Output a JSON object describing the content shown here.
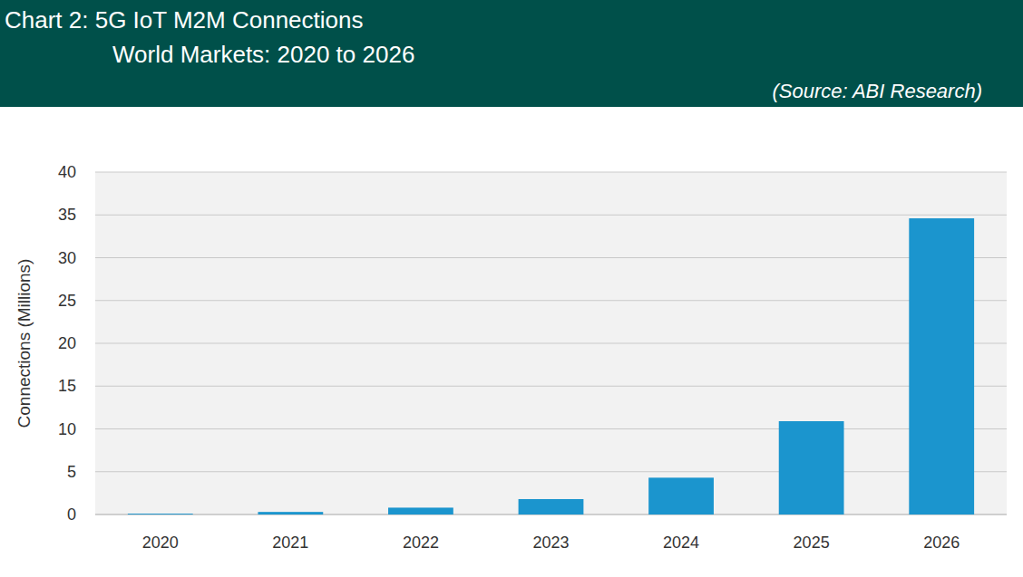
{
  "chart_data": {
    "type": "bar",
    "title": "Chart 2: 5G IoT M2M Connections",
    "subtitle": "World Markets: 2020 to 2026",
    "annotations": [
      "(Source: ABI Research)"
    ],
    "y_label": "Connections (Millions)",
    "categories": [
      "2020",
      "2021",
      "2022",
      "2023",
      "2024",
      "2025",
      "2026"
    ],
    "values": [
      0.1,
      0.3,
      0.8,
      1.8,
      4.3,
      10.9,
      34.6
    ],
    "color": "#1b95ce",
    "ylim": [
      0,
      40
    ],
    "yticks": [
      0,
      5,
      10,
      15,
      20,
      25,
      30,
      35,
      40
    ],
    "grid": true
  }
}
